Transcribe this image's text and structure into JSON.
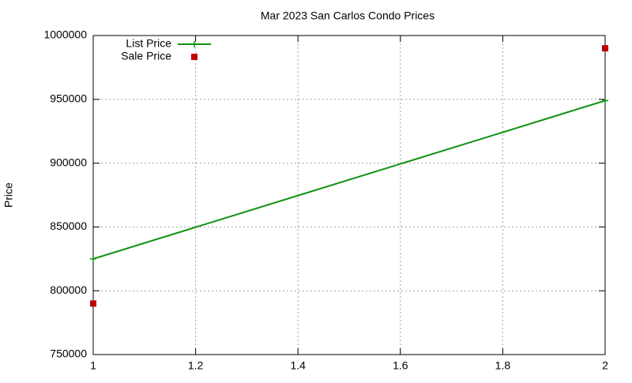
{
  "chart_data": {
    "type": "line",
    "title": "Mar 2023 San Carlos Condo Prices",
    "y_label": "Price",
    "x": [
      1,
      2
    ],
    "series": [
      {
        "name": "List Price",
        "color": "#109010",
        "style": "linespoints",
        "values": [
          825000,
          949000
        ]
      },
      {
        "name": "Sale Price",
        "color": "#c00000",
        "style": "points",
        "values": [
          790000,
          990000
        ]
      }
    ],
    "xlim": [
      1,
      2
    ],
    "xticks": [
      1,
      1.2,
      1.4,
      1.6,
      1.8,
      2
    ],
    "ylim": [
      750000,
      1000000
    ],
    "yticks": [
      750000,
      800000,
      850000,
      900000,
      950000,
      1000000
    ],
    "grid": true,
    "legend": "top-left"
  }
}
